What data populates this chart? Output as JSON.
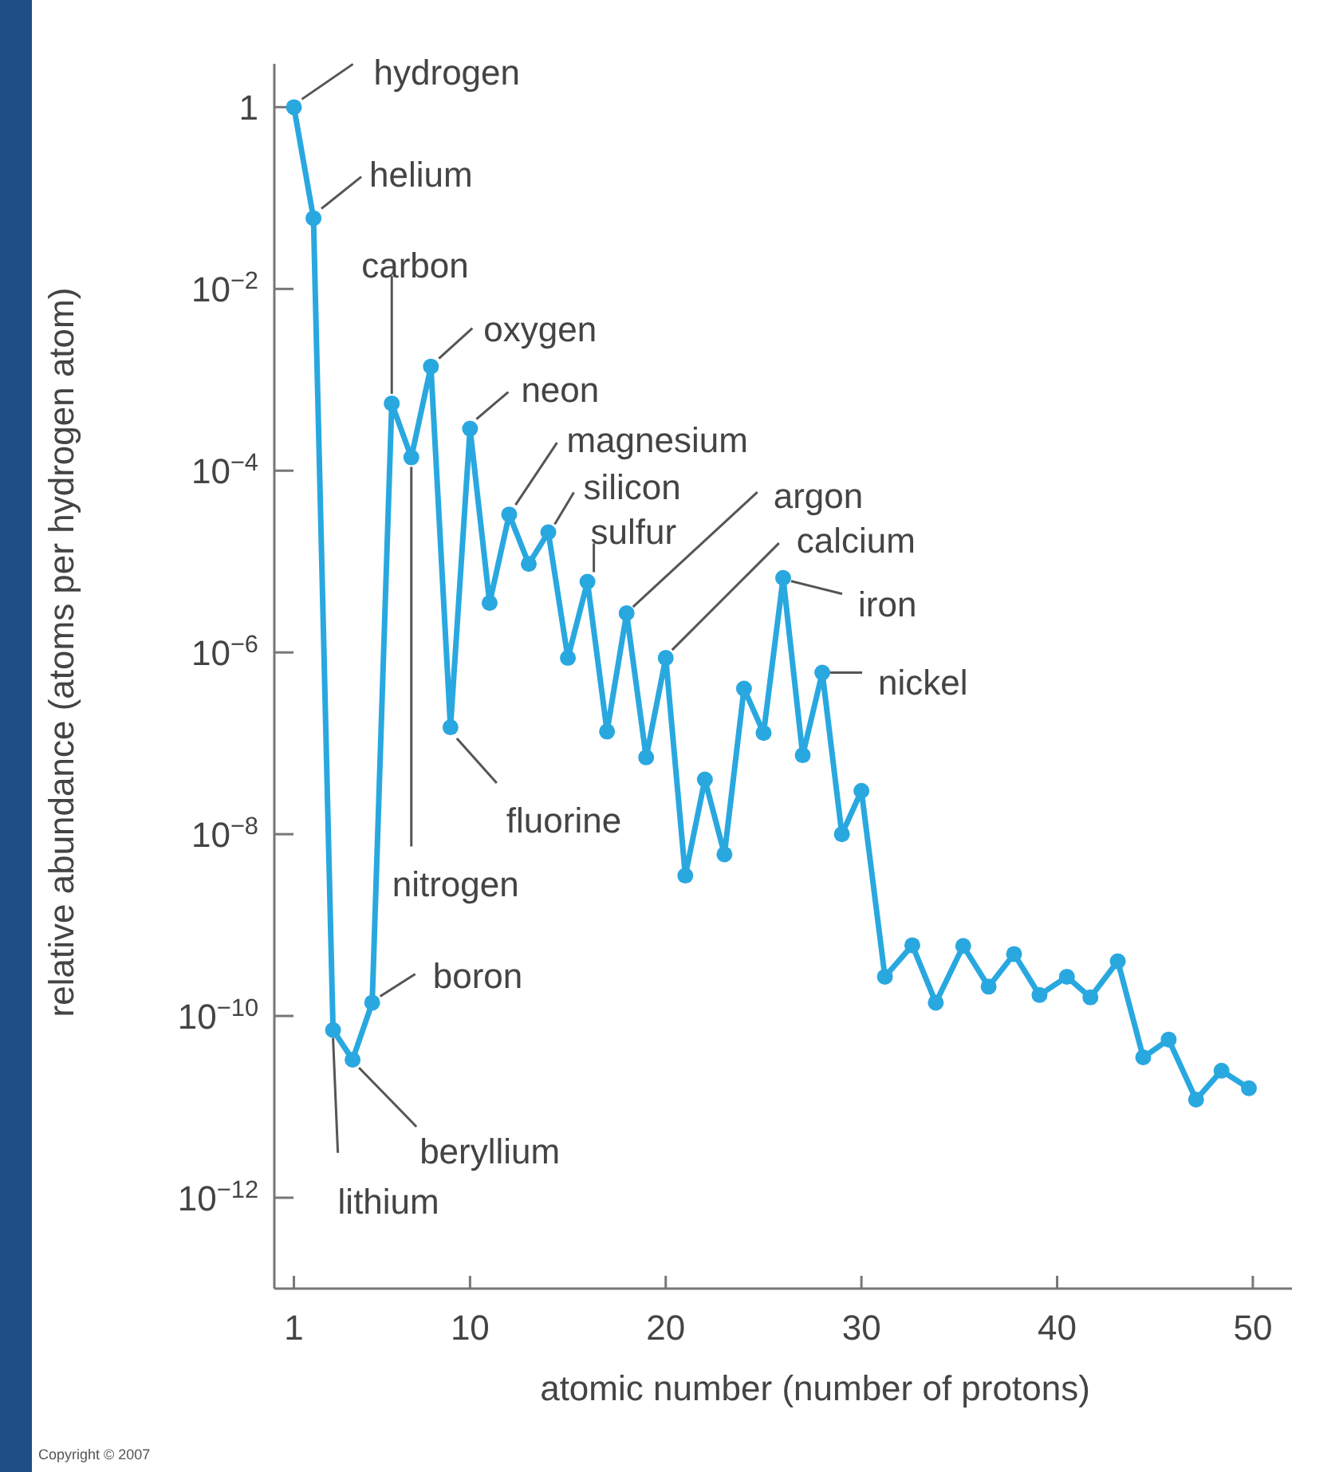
{
  "chart_data": {
    "type": "line",
    "xlabel": "atomic number (number of protons)",
    "ylabel": "relative abundance (atoms per hydrogen atom)",
    "log": true,
    "marker": "circle",
    "line_style": "solid",
    "grid": false,
    "xlim": [
      0,
      52
    ],
    "xticks": [
      1,
      10,
      20,
      30,
      40,
      50
    ],
    "ylim": [
      1e-13,
      3
    ],
    "yticks": [
      1,
      {
        "value": 0.01,
        "label": "10$^{−2}$"
      },
      {
        "value": 0.0001,
        "label": "10$^{−4}$"
      },
      {
        "value": 1e-06,
        "label": "10$^{−6}$"
      },
      {
        "value": 1e-08,
        "label": "10$^{−8}$"
      },
      {
        "value": 1e-10,
        "label": "10$^{−10}$"
      },
      {
        "value": 1e-12,
        "label": "10$^{−12}$"
      }
    ],
    "series": [
      {
        "color": "#29a8e0",
        "x": [
          1,
          2,
          3,
          4,
          5,
          6,
          7,
          8,
          9,
          10,
          11,
          12,
          13,
          14,
          15,
          16,
          17,
          18,
          19,
          20,
          21,
          22,
          23,
          24,
          25,
          26,
          27,
          28,
          29,
          30,
          31.2,
          32.6,
          33.8,
          35.2,
          36.5,
          37.8,
          39.1,
          40.5,
          41.7,
          43.1,
          44.4,
          45.7,
          47.1,
          48.4,
          49.8
        ],
        "values": [
          1,
          0.06,
          7e-11,
          3.3e-11,
          1.4e-10,
          0.00055,
          0.00014,
          0.0014,
          1.5e-07,
          0.00029,
          3.5e-06,
          3.3e-05,
          9.4e-06,
          2.1e-05,
          8.7e-07,
          6e-06,
          1.35e-07,
          2.7e-06,
          7e-08,
          8.7e-07,
          3.5e-09,
          4e-08,
          6e-09,
          4e-07,
          1.3e-07,
          6.6e-06,
          7.4e-08,
          6e-07,
          1e-08,
          3e-08,
          2.7e-10,
          6e-10,
          1.4e-10,
          5.9e-10,
          2.1e-10,
          4.8e-10,
          1.7e-10,
          2.7e-10,
          1.6e-10,
          4e-10,
          3.5e-11,
          5.5e-11,
          1.2e-11,
          2.5e-11,
          1.6e-11
        ]
      }
    ],
    "annotations": [
      {
        "text": "hydrogen",
        "x": 1,
        "y": 1
      },
      {
        "text": "helium",
        "x": 2,
        "y": 0.06
      },
      {
        "text": "carbon",
        "x": 6,
        "y": 0.00055
      },
      {
        "text": "oxygen",
        "x": 8,
        "y": 0.0014
      },
      {
        "text": "neon",
        "x": 10,
        "y": 0.00029
      },
      {
        "text": "magnesium",
        "x": 12,
        "y": 3.3e-05
      },
      {
        "text": "silicon",
        "x": 14,
        "y": 2.1e-05
      },
      {
        "text": "sulfur",
        "x": 16,
        "y": 6e-06
      },
      {
        "text": "argon",
        "x": 18,
        "y": 2.7e-06
      },
      {
        "text": "calcium",
        "x": 20,
        "y": 8.7e-07
      },
      {
        "text": "iron",
        "x": 26,
        "y": 6.6e-06
      },
      {
        "text": "nickel",
        "x": 28,
        "y": 6e-07
      },
      {
        "text": "fluorine",
        "x": 9,
        "y": 1.5e-07
      },
      {
        "text": "nitrogen",
        "x": 7,
        "y": 0.00014
      },
      {
        "text": "boron",
        "x": 5,
        "y": 1.4e-10
      },
      {
        "text": "beryllium",
        "x": 4,
        "y": 3.3e-11
      },
      {
        "text": "lithium",
        "x": 3,
        "y": 7e-11
      },
      "Copyright © 2007"
    ]
  }
}
